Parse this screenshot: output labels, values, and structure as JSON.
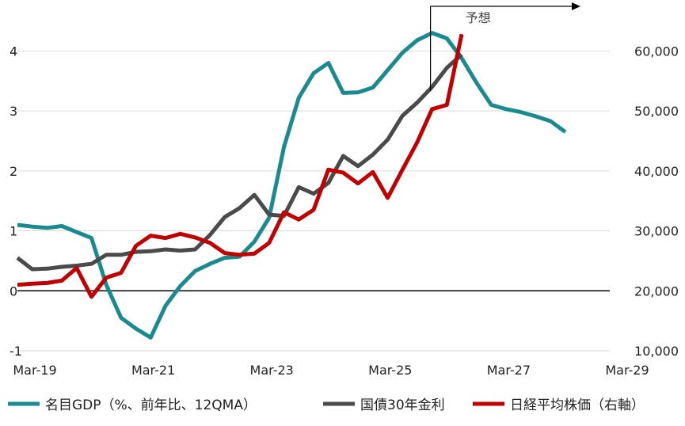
{
  "chart_data": {
    "type": "line",
    "x_axis": {
      "ticks": [
        "Mar-19",
        "Mar-21",
        "Mar-23",
        "Mar-25",
        "Mar-27",
        "Mar-29"
      ],
      "range": [
        "2019-03",
        "2029-03"
      ]
    },
    "y_left": {
      "ticks": [
        "-1",
        "0",
        "1",
        "2",
        "3",
        "4"
      ],
      "range": [
        -1,
        4.85
      ],
      "negative_color": "#cc0000"
    },
    "y_right": {
      "ticks": [
        "10,000",
        "20,000",
        "30,000",
        "40,000",
        "50,000",
        "60,000"
      ],
      "range": [
        10000,
        68500
      ]
    },
    "grid": true,
    "legend_position": "bottom",
    "forecast": {
      "label": "予想",
      "start": "2026-03"
    },
    "series": [
      {
        "name": "名目GDP（%、前年比、12QMA）",
        "axis": "left",
        "color": "#1a8a8e",
        "points": [
          [
            "2019-03",
            1.1
          ],
          [
            "2019-06",
            1.07
          ],
          [
            "2019-09",
            1.05
          ],
          [
            "2019-12",
            1.08
          ],
          [
            "2020-03",
            0.98
          ],
          [
            "2020-06",
            0.88
          ],
          [
            "2020-09",
            0.1
          ],
          [
            "2020-12",
            -0.45
          ],
          [
            "2021-03",
            -0.63
          ],
          [
            "2021-06",
            -0.78
          ],
          [
            "2021-09",
            -0.25
          ],
          [
            "2021-12",
            0.08
          ],
          [
            "2022-03",
            0.33
          ],
          [
            "2022-06",
            0.45
          ],
          [
            "2022-09",
            0.55
          ],
          [
            "2022-12",
            0.57
          ],
          [
            "2023-03",
            0.82
          ],
          [
            "2023-06",
            1.22
          ],
          [
            "2023-09",
            2.4
          ],
          [
            "2023-12",
            3.22
          ],
          [
            "2024-03",
            3.63
          ],
          [
            "2024-06",
            3.8
          ],
          [
            "2024-09",
            3.3
          ],
          [
            "2024-12",
            3.31
          ],
          [
            "2025-03",
            3.39
          ],
          [
            "2025-06",
            3.68
          ],
          [
            "2025-09",
            3.97
          ],
          [
            "2025-12",
            4.18
          ],
          [
            "2026-03",
            4.3
          ],
          [
            "2026-06",
            4.21
          ],
          [
            "2026-09",
            3.88
          ],
          [
            "2026-12",
            3.47
          ],
          [
            "2027-03",
            3.1
          ],
          [
            "2027-06",
            3.03
          ],
          [
            "2027-09",
            2.98
          ],
          [
            "2027-12",
            2.91
          ],
          [
            "2028-03",
            2.83
          ],
          [
            "2028-06",
            2.65
          ]
        ]
      },
      {
        "name": "国債30年金利",
        "axis": "left",
        "color": "#4a4a4a",
        "points": [
          [
            "2019-03",
            0.55
          ],
          [
            "2019-06",
            0.36
          ],
          [
            "2019-09",
            0.37
          ],
          [
            "2019-12",
            0.4
          ],
          [
            "2020-03",
            0.42
          ],
          [
            "2020-06",
            0.45
          ],
          [
            "2020-09",
            0.6
          ],
          [
            "2020-12",
            0.6
          ],
          [
            "2021-03",
            0.65
          ],
          [
            "2021-06",
            0.66
          ],
          [
            "2021-09",
            0.69
          ],
          [
            "2021-12",
            0.67
          ],
          [
            "2022-03",
            0.69
          ],
          [
            "2022-06",
            0.93
          ],
          [
            "2022-09",
            1.23
          ],
          [
            "2022-12",
            1.38
          ],
          [
            "2023-03",
            1.6
          ],
          [
            "2023-06",
            1.27
          ],
          [
            "2023-09",
            1.25
          ],
          [
            "2023-12",
            1.73
          ],
          [
            "2024-03",
            1.62
          ],
          [
            "2024-06",
            1.8
          ],
          [
            "2024-09",
            2.25
          ],
          [
            "2024-12",
            2.08
          ],
          [
            "2025-03",
            2.27
          ],
          [
            "2025-06",
            2.52
          ],
          [
            "2025-09",
            2.92
          ],
          [
            "2025-12",
            3.14
          ],
          [
            "2026-03",
            3.4
          ],
          [
            "2026-06",
            3.72
          ],
          [
            "2026-09",
            3.94
          ]
        ]
      },
      {
        "name": "日経平均株価（右軸）",
        "axis": "right",
        "color": "#c00000",
        "points": [
          [
            "2019-03",
            21000
          ],
          [
            "2019-06",
            21200
          ],
          [
            "2019-09",
            21300
          ],
          [
            "2019-12",
            21700
          ],
          [
            "2020-03",
            23800
          ],
          [
            "2020-06",
            19000
          ],
          [
            "2020-09",
            22200
          ],
          [
            "2020-12",
            23000
          ],
          [
            "2021-03",
            27500
          ],
          [
            "2021-06",
            29200
          ],
          [
            "2021-09",
            28800
          ],
          [
            "2021-12",
            29500
          ],
          [
            "2022-03",
            28900
          ],
          [
            "2022-06",
            28000
          ],
          [
            "2022-09",
            26300
          ],
          [
            "2022-12",
            26000
          ],
          [
            "2023-03",
            26200
          ],
          [
            "2023-06",
            28000
          ],
          [
            "2023-09",
            33100
          ],
          [
            "2023-12",
            31900
          ],
          [
            "2024-03",
            33500
          ],
          [
            "2024-06",
            40200
          ],
          [
            "2024-09",
            39700
          ],
          [
            "2024-12",
            37900
          ],
          [
            "2025-03",
            39800
          ],
          [
            "2025-06",
            35500
          ],
          [
            "2025-09",
            40200
          ],
          [
            "2025-12",
            44800
          ],
          [
            "2026-03",
            50300
          ],
          [
            "2026-06",
            51000
          ],
          [
            "2026-09",
            62800
          ]
        ]
      }
    ]
  }
}
